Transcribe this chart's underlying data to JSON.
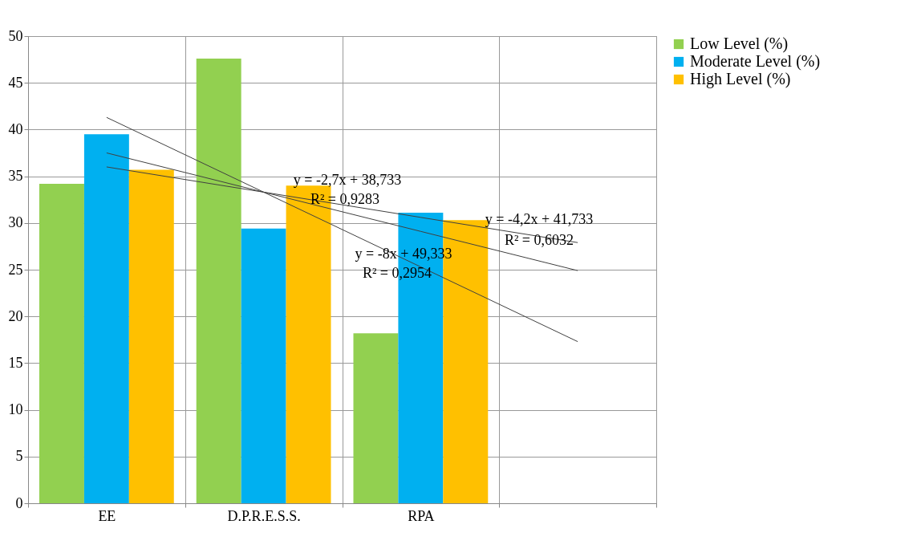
{
  "chart_data": {
    "type": "bar",
    "categories": [
      "EE",
      "D.P.R.E.S.S.",
      "RPA",
      null
    ],
    "series": [
      {
        "name": "Low Level (%)",
        "color": "#92d050",
        "values": [
          34.2,
          47.6,
          18.2,
          null
        ]
      },
      {
        "name": "Moderate Level (%)",
        "color": "#00b0f0",
        "values": [
          39.5,
          29.4,
          31.1,
          null
        ]
      },
      {
        "name": "High Level (%)",
        "color": "#ffc000",
        "values": [
          35.7,
          34.0,
          30.3,
          null
        ]
      },
      {
        "type": "line",
        "color": "#404040",
        "line_style": "solid",
        "marker": "none",
        "values": [
          41.3,
          33.3,
          25.3,
          17.3
        ]
      },
      {
        "type": "line",
        "color": "#404040",
        "line_style": "solid",
        "marker": "none",
        "values": [
          37.5,
          33.3,
          29.1,
          24.9
        ]
      },
      {
        "type": "line",
        "color": "#404040",
        "line_style": "solid",
        "marker": "none",
        "values": [
          36.0,
          33.3,
          30.6,
          27.9
        ]
      }
    ],
    "annotations": [
      "y = -2,7x + 38,733",
      "R² = 0,9283",
      "y = -4,2x + 41,733",
      "R² = 0,6032",
      "y = -8x + 49,333",
      "R² = 0,2954"
    ],
    "ylim": [
      0,
      50
    ],
    "yticks": [
      0,
      5,
      10,
      15,
      20,
      25,
      30,
      35,
      40,
      45,
      50
    ],
    "grid": true,
    "legend": "right"
  }
}
